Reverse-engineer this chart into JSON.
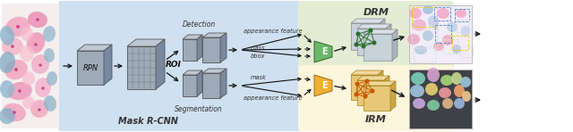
{
  "fig_width": 6.4,
  "fig_height": 1.48,
  "dpi": 100,
  "bg_color": "#ffffff",
  "light_blue_bg": "#cfe0f0",
  "light_green_bg": "#e4edd4",
  "light_yellow_bg": "#fdf5dc",
  "title_drm": "DRM",
  "title_irm": "IRM",
  "label_mask_rcnn": "Mask R-CNN",
  "label_rpn": "RPN",
  "label_roi": "ROI",
  "label_detection": "Detection",
  "label_segmentation": "Segmentation",
  "label_appearance_top": "appearance feature",
  "label_class": "class",
  "label_bbox": "bbox",
  "label_mask": "mask",
  "label_appearance_bot": "appearance feature",
  "label_e": "E",
  "gray_face": "#9eaab8",
  "gray_top": "#bec8d2",
  "gray_right": "#7a8a98",
  "gray_grid": "#b0bcc8",
  "green_e": "#6bb86a",
  "yellow_e": "#f0b030",
  "arrow_color": "#111111"
}
